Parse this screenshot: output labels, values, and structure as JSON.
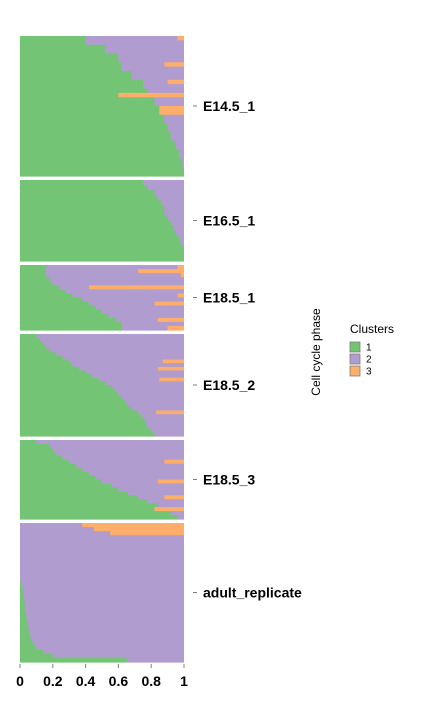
{
  "chart_data": {
    "type": "bar",
    "orientation": "horizontal-stacked",
    "xlabel": "",
    "ylabel": "Cell cycle phase",
    "xlim": [
      0,
      1
    ],
    "x_ticks": [
      "0",
      "0.2",
      "0.4",
      "0.6",
      "0.8",
      "1"
    ],
    "grid": false,
    "legend_position": "right",
    "legend": {
      "title": "Clusters",
      "items": [
        {
          "label": "1",
          "color": "#74c476"
        },
        {
          "label": "2",
          "color": "#b09cce"
        },
        {
          "label": "3",
          "color": "#fdae6b"
        }
      ]
    },
    "facets": [
      {
        "label": "E14.5_1",
        "c1": [
          0.4,
          0.4,
          0.52,
          0.52,
          0.6,
          0.6,
          0.62,
          0.62,
          0.68,
          0.68,
          0.75,
          0.75,
          0.78,
          0.78,
          0.82,
          0.82,
          0.85,
          0.85,
          0.88,
          0.88,
          0.9,
          0.9,
          0.92,
          0.92,
          0.95,
          0.95,
          0.97,
          0.97,
          0.99,
          0.99,
          1.0,
          1.0
        ],
        "c3": [
          0.04,
          0.0,
          0.0,
          0.0,
          0.0,
          0.0,
          0.12,
          0.0,
          0.0,
          0.0,
          0.1,
          0.0,
          0.0,
          0.4,
          0.0,
          0.0,
          0.15,
          0.15,
          0.0,
          0.0,
          0.0,
          0.0,
          0.0,
          0.0,
          0.0,
          0.0,
          0.0,
          0.0,
          0.0,
          0.0,
          0.0,
          0.0
        ]
      },
      {
        "label": "E16.5_1",
        "c1": [
          0.75,
          0.78,
          0.82,
          0.84,
          0.86,
          0.88,
          0.88,
          0.9,
          0.92,
          0.94,
          0.95,
          0.97,
          0.98,
          1.0,
          1.0,
          1.0
        ],
        "c3": [
          0,
          0,
          0,
          0,
          0,
          0,
          0,
          0,
          0,
          0,
          0,
          0,
          0,
          0,
          0,
          0
        ]
      },
      {
        "label": "E18.5_1",
        "c1": [
          0.16,
          0.16,
          0.16,
          0.18,
          0.2,
          0.24,
          0.28,
          0.32,
          0.38,
          0.42,
          0.46,
          0.5,
          0.54,
          0.58,
          0.62,
          0.62
        ],
        "c3": [
          0.04,
          0.28,
          0.02,
          0.0,
          0.0,
          0.58,
          0.0,
          0.04,
          0.0,
          0.18,
          0.0,
          0.0,
          0.0,
          0.16,
          0.0,
          0.1
        ]
      },
      {
        "label": "E18.5_2",
        "c1": [
          0.1,
          0.12,
          0.14,
          0.16,
          0.18,
          0.22,
          0.26,
          0.3,
          0.32,
          0.36,
          0.4,
          0.44,
          0.48,
          0.52,
          0.56,
          0.58,
          0.6,
          0.62,
          0.64,
          0.66,
          0.68,
          0.72,
          0.74,
          0.76,
          0.77,
          0.78,
          0.8,
          0.82
        ],
        "c3": [
          0,
          0,
          0,
          0,
          0,
          0,
          0,
          0.13,
          0,
          0.16,
          0,
          0,
          0.15,
          0,
          0,
          0,
          0,
          0,
          0,
          0,
          0,
          0.17,
          0,
          0,
          0,
          0,
          0,
          0
        ]
      },
      {
        "label": "E18.5_3",
        "c1": [
          0.1,
          0.18,
          0.2,
          0.22,
          0.26,
          0.3,
          0.34,
          0.38,
          0.42,
          0.46,
          0.5,
          0.56,
          0.6,
          0.66,
          0.72,
          0.78,
          0.84,
          0.88,
          0.92,
          0.96
        ],
        "c3": [
          0,
          0,
          0,
          0,
          0,
          0.12,
          0,
          0,
          0,
          0,
          0.16,
          0,
          0,
          0,
          0.12,
          0,
          0,
          0.18,
          0,
          0
        ]
      },
      {
        "label": "adult_replicate",
        "c1": [
          0,
          0,
          0,
          0,
          0,
          0,
          0,
          0,
          0,
          0,
          0,
          0,
          0,
          0,
          0.01,
          0.01,
          0.02,
          0.02,
          0.02,
          0.03,
          0.03,
          0.03,
          0.04,
          0.04,
          0.05,
          0.05,
          0.06,
          0.06,
          0.07,
          0.08,
          0.1,
          0.14,
          0.2,
          0.65
        ],
        "c3": [
          0.62,
          0.55,
          0.45,
          0,
          0,
          0,
          0,
          0,
          0,
          0,
          0,
          0,
          0,
          0,
          0,
          0,
          0,
          0,
          0,
          0,
          0,
          0,
          0,
          0,
          0,
          0,
          0,
          0,
          0,
          0,
          0,
          0,
          0,
          0
        ]
      }
    ]
  }
}
